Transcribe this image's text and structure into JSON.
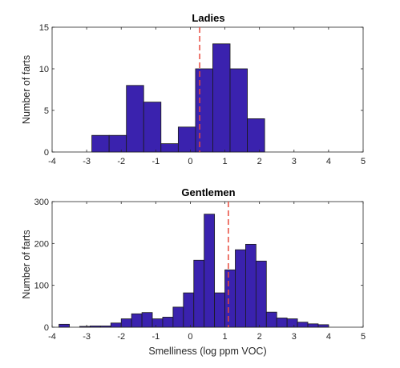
{
  "chart_data": [
    {
      "type": "bar",
      "title": "Ladies",
      "xlabel": "",
      "ylabel": "Number of farts",
      "xlim": [
        -4,
        5
      ],
      "ylim": [
        0,
        15
      ],
      "xticks": [
        "-4",
        "-3",
        "-2",
        "-1",
        "0",
        "1",
        "2",
        "3",
        "4",
        "5"
      ],
      "yticks": [
        "0",
        "5",
        "10",
        "15"
      ],
      "bin_width": 0.5,
      "bins": [
        {
          "start": -2.85,
          "count": 2
        },
        {
          "start": -2.35,
          "count": 2
        },
        {
          "start": -1.85,
          "count": 8
        },
        {
          "start": -1.35,
          "count": 6
        },
        {
          "start": -0.85,
          "count": 1
        },
        {
          "start": -0.35,
          "count": 3
        },
        {
          "start": 0.15,
          "count": 10
        },
        {
          "start": 0.65,
          "count": 13
        },
        {
          "start": 1.15,
          "count": 10
        },
        {
          "start": 1.65,
          "count": 4
        }
      ],
      "mean_line": 0.27,
      "bar_color": "#3A22AE",
      "mean_color": "#E8493C",
      "grid": false
    },
    {
      "type": "bar",
      "title": "Gentlemen",
      "xlabel": "Smelliness (log ppm VOC)",
      "ylabel": "Number of farts",
      "xlim": [
        -4,
        5
      ],
      "ylim": [
        0,
        300
      ],
      "xticks": [
        "-4",
        "-3",
        "-2",
        "-1",
        "0",
        "1",
        "2",
        "3",
        "4",
        "5"
      ],
      "yticks": [
        "0",
        "100",
        "200",
        "300"
      ],
      "bin_width": 0.3,
      "bins": [
        {
          "start": -3.8,
          "count": 7
        },
        {
          "start": -3.5,
          "count": 0
        },
        {
          "start": -3.2,
          "count": 2
        },
        {
          "start": -2.9,
          "count": 3
        },
        {
          "start": -2.6,
          "count": 3
        },
        {
          "start": -2.3,
          "count": 10
        },
        {
          "start": -2.0,
          "count": 20
        },
        {
          "start": -1.7,
          "count": 32
        },
        {
          "start": -1.4,
          "count": 35
        },
        {
          "start": -1.1,
          "count": 20
        },
        {
          "start": -0.8,
          "count": 24
        },
        {
          "start": -0.5,
          "count": 48
        },
        {
          "start": -0.2,
          "count": 82
        },
        {
          "start": 0.1,
          "count": 160
        },
        {
          "start": 0.4,
          "count": 270
        },
        {
          "start": 0.7,
          "count": 82
        },
        {
          "start": 1.0,
          "count": 137
        },
        {
          "start": 1.3,
          "count": 185
        },
        {
          "start": 1.6,
          "count": 198
        },
        {
          "start": 1.9,
          "count": 158
        },
        {
          "start": 2.2,
          "count": 36
        },
        {
          "start": 2.5,
          "count": 22
        },
        {
          "start": 2.8,
          "count": 20
        },
        {
          "start": 3.1,
          "count": 12
        },
        {
          "start": 3.4,
          "count": 8
        },
        {
          "start": 3.7,
          "count": 6
        }
      ],
      "mean_line": 1.1,
      "bar_color": "#3A22AE",
      "mean_color": "#E8493C",
      "grid": false
    }
  ]
}
